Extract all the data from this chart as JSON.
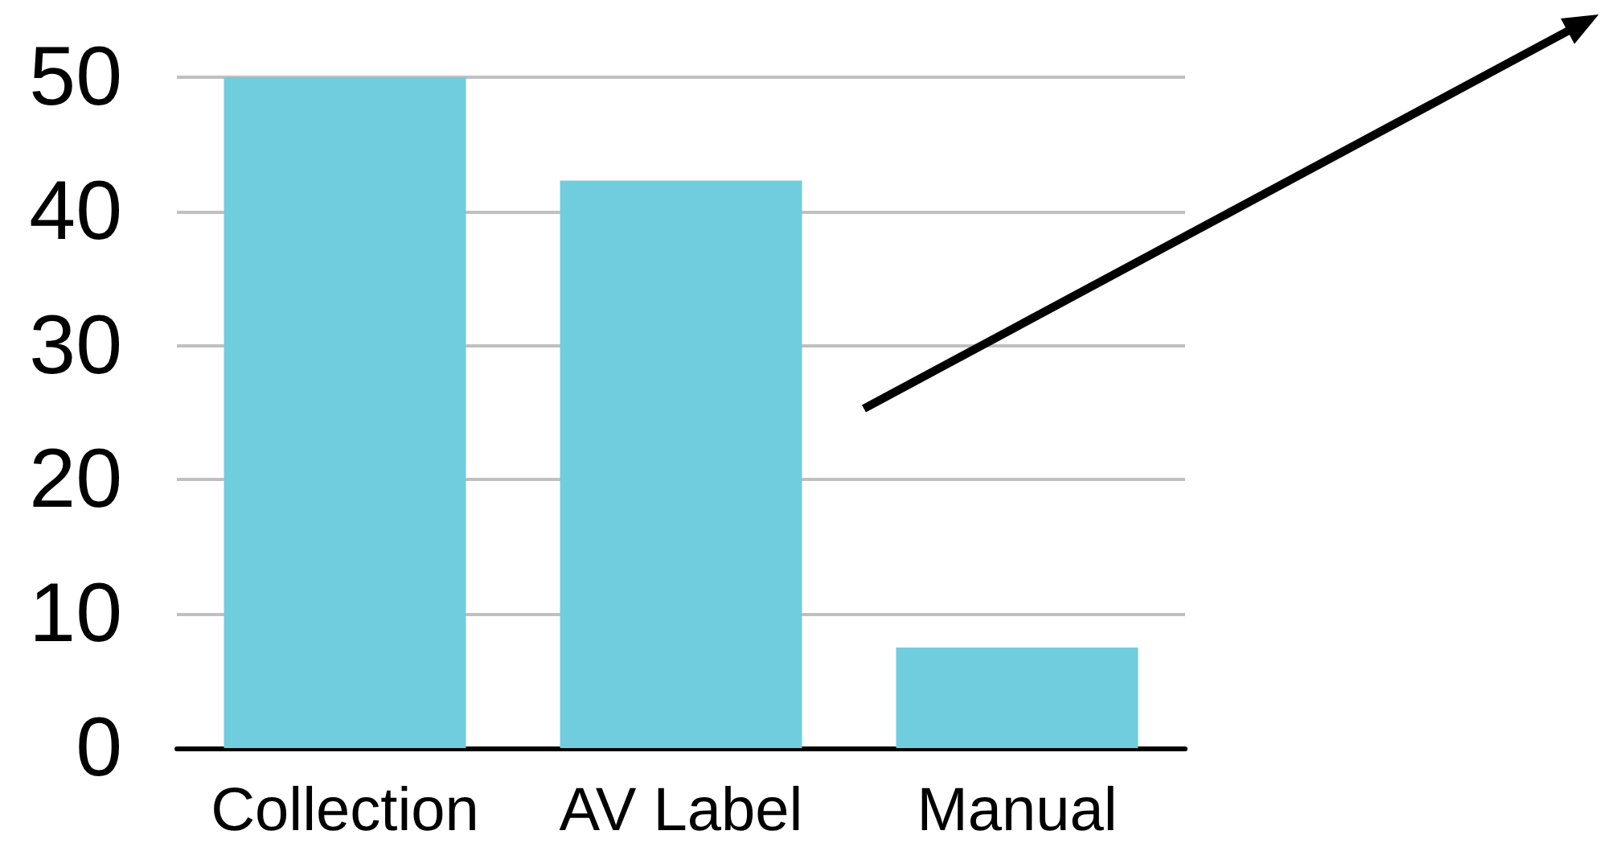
{
  "chart_data": {
    "type": "bar",
    "categories": [
      "Collection",
      "AV Label",
      "Manual"
    ],
    "values": [
      50,
      42.3,
      7.5
    ],
    "color": "#70cddd",
    "ylim": [
      0,
      50
    ],
    "yticks": [
      0,
      10,
      20,
      30,
      40,
      50
    ],
    "grid": "y"
  }
}
